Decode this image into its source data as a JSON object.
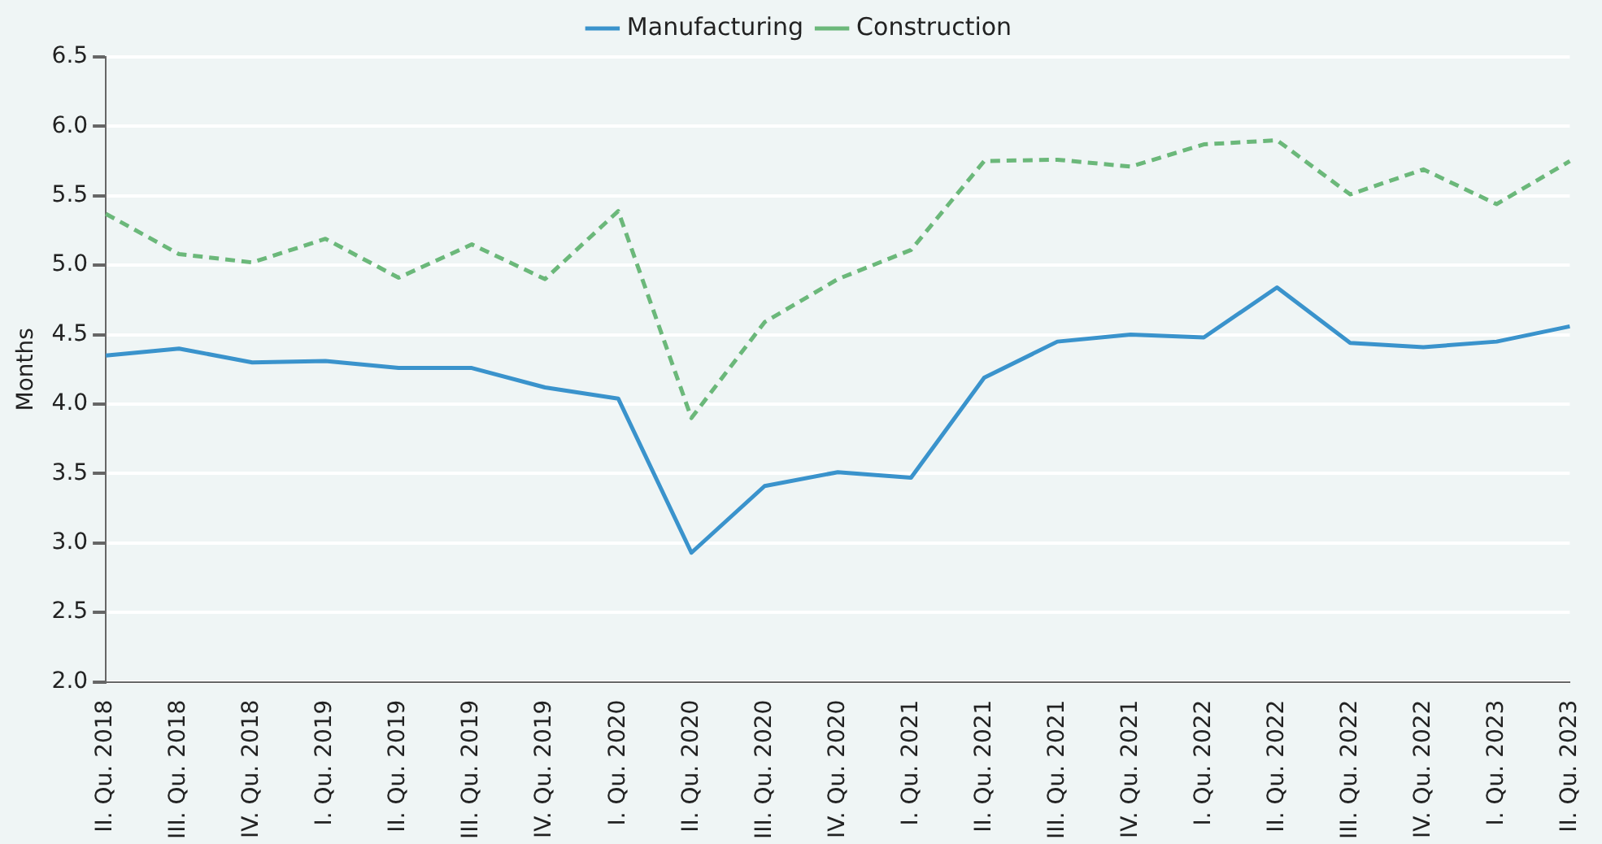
{
  "chart_data": {
    "type": "line",
    "ylabel": "Months",
    "categories": [
      "II. Qu. 2018",
      "III. Qu. 2018",
      "IV. Qu. 2018",
      "I. Qu. 2019",
      "II. Qu. 2019",
      "III. Qu. 2019",
      "IV. Qu. 2019",
      "I. Qu. 2020",
      "II. Qu. 2020",
      "III. Qu. 2020",
      "IV. Qu. 2020",
      "I. Qu. 2021",
      "II. Qu. 2021",
      "III. Qu. 2021",
      "IV. Qu. 2021",
      "I. Qu. 2022",
      "II. Qu. 2022",
      "III. Qu. 2022",
      "IV. Qu. 2022",
      "I. Qu. 2023",
      "II. Qu. 2023"
    ],
    "series": [
      {
        "name": "Manufacturing",
        "color": "#3a93cc",
        "line_style": "solid",
        "values": [
          4.35,
          4.4,
          4.3,
          4.31,
          4.26,
          4.26,
          4.12,
          4.04,
          2.93,
          3.41,
          3.51,
          3.47,
          4.19,
          4.45,
          4.5,
          4.48,
          4.84,
          4.44,
          4.41,
          4.45,
          4.56
        ]
      },
      {
        "name": "Construction",
        "color": "#6bb87a",
        "line_style": "dashed",
        "values": [
          5.37,
          5.08,
          5.02,
          5.19,
          4.91,
          5.15,
          4.9,
          5.39,
          3.9,
          4.59,
          4.9,
          5.11,
          5.75,
          5.76,
          5.71,
          5.87,
          5.9,
          5.51,
          5.69,
          5.44,
          5.75
        ]
      }
    ],
    "ylim": [
      2.0,
      6.5
    ],
    "yticks": [
      {
        "value": 2,
        "label": "2.0"
      },
      2.5,
      {
        "value": 3,
        "label": "3.0"
      },
      3.5,
      {
        "value": 4,
        "label": "4.0"
      },
      4.5,
      {
        "value": 5,
        "label": "5.0"
      },
      5.5,
      {
        "value": 6,
        "label": "6.0"
      },
      6.5
    ],
    "grid": "y",
    "legend": "top",
    "marker": "none"
  }
}
